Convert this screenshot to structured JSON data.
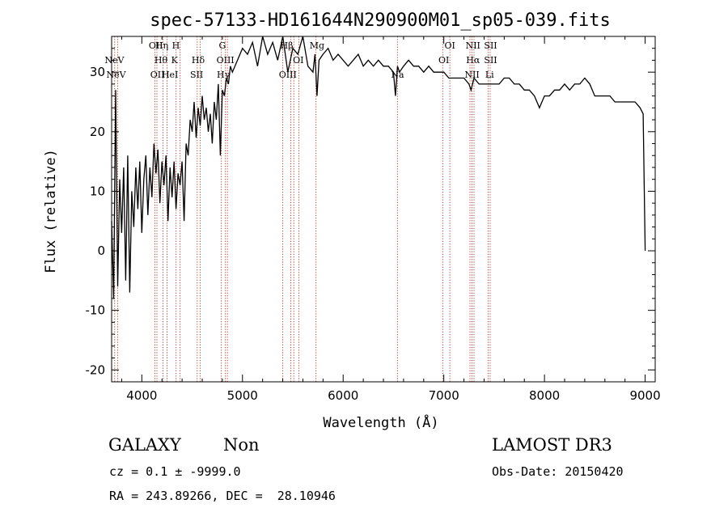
{
  "chart_data": {
    "type": "line",
    "title": "spec-57133-HD161644N290900M01_sp05-039.fits",
    "xlabel": "Wavelength (Å)",
    "ylabel": "Flux (relative)",
    "xlim": [
      3700,
      9100
    ],
    "ylim": [
      -22,
      36
    ],
    "xticks": [
      4000,
      5000,
      6000,
      7000,
      8000,
      9000
    ],
    "yticks": [
      -20,
      -10,
      0,
      10,
      20,
      30
    ],
    "grid": false,
    "series": [
      {
        "x": [
          3700,
          3720,
          3740,
          3760,
          3780,
          3800,
          3820,
          3840,
          3860,
          3880,
          3900,
          3920,
          3940,
          3960,
          3980,
          4000,
          4020,
          4040,
          4060,
          4080,
          4100,
          4120,
          4140,
          4160,
          4180,
          4200,
          4220,
          4240,
          4260,
          4280,
          4300,
          4320,
          4340,
          4360,
          4380,
          4400,
          4420,
          4440,
          4460,
          4480,
          4500,
          4520,
          4540,
          4560,
          4580,
          4600,
          4620,
          4640,
          4660,
          4680,
          4700,
          4720,
          4740,
          4760,
          4780,
          4800,
          4820,
          4840,
          4860,
          4880,
          4900,
          4950,
          5000,
          5050,
          5100,
          5150,
          5200,
          5250,
          5300,
          5350,
          5400,
          5450,
          5500,
          5550,
          5600,
          5650,
          5700,
          5720,
          5740,
          5760,
          5800,
          5850,
          5900,
          5950,
          6000,
          6050,
          6100,
          6150,
          6200,
          6250,
          6300,
          6350,
          6400,
          6450,
          6500,
          6520,
          6540,
          6560,
          6600,
          6650,
          6700,
          6750,
          6800,
          6850,
          6900,
          6950,
          7000,
          7050,
          7100,
          7150,
          7200,
          7250,
          7270,
          7300,
          7350,
          7400,
          7450,
          7500,
          7550,
          7600,
          7650,
          7700,
          7750,
          7800,
          7850,
          7900,
          7950,
          8000,
          8050,
          8100,
          8150,
          8200,
          8250,
          8300,
          8350,
          8400,
          8450,
          8500,
          8550,
          8600,
          8650,
          8700,
          8750,
          8800,
          8850,
          8900,
          8950,
          8980,
          9000
        ],
        "values": [
          5,
          -8,
          27,
          -6,
          12,
          3,
          14,
          -5,
          16,
          -7,
          10,
          4,
          14,
          7,
          15,
          3,
          12,
          16,
          6,
          14,
          9,
          18,
          13,
          17,
          8,
          15,
          11,
          16,
          5,
          14,
          9,
          15,
          7,
          13,
          11,
          15,
          5,
          18,
          16,
          22,
          20,
          25,
          19,
          24,
          21,
          26,
          22,
          24,
          20,
          23,
          18,
          25,
          22,
          28,
          16,
          27,
          26,
          29,
          28,
          31,
          30,
          32,
          34,
          33,
          35,
          31,
          36,
          33,
          35,
          32,
          37,
          30,
          34,
          33,
          36,
          31,
          30,
          33,
          26,
          32,
          33,
          34,
          32,
          33,
          32,
          31,
          32,
          33,
          31,
          32,
          31,
          32,
          31,
          31,
          30,
          26,
          31,
          30,
          31,
          32,
          31,
          31,
          30,
          31,
          30,
          30,
          30,
          29,
          29,
          29,
          29,
          28,
          27,
          29,
          28,
          28,
          28,
          28,
          28,
          29,
          29,
          28,
          28,
          27,
          27,
          26,
          24,
          26,
          26,
          27,
          27,
          28,
          27,
          28,
          28,
          29,
          28,
          26,
          26,
          26,
          26,
          25,
          25,
          25,
          25,
          25,
          24,
          23,
          0
        ]
      }
    ],
    "spectral_lines": [
      {
        "label": "NeV",
        "x": 3727,
        "row": 2
      },
      {
        "label": "NeV",
        "x": 3745,
        "row": 3
      },
      {
        "label": "OII",
        "x": 4140,
        "row": 1
      },
      {
        "label": "Hη",
        "x": 4198,
        "row": 1
      },
      {
        "label": "H",
        "x": 4338,
        "row": 1
      },
      {
        "label": "Hθ",
        "x": 4190,
        "row": 2
      },
      {
        "label": "K",
        "x": 4325,
        "row": 2
      },
      {
        "label": "Hδ",
        "x": 4560,
        "row": 2
      },
      {
        "label": "OII",
        "x": 4155,
        "row": 3
      },
      {
        "label": "HeI",
        "x": 4280,
        "row": 3
      },
      {
        "label": "SII",
        "x": 4545,
        "row": 3
      },
      {
        "label": "G",
        "x": 4800,
        "row": 1
      },
      {
        "label": "OIII",
        "x": 4830,
        "row": 2
      },
      {
        "label": "Hγ",
        "x": 4810,
        "row": 3
      },
      {
        "label": "Hβ",
        "x": 5440,
        "row": 1
      },
      {
        "label": "OI",
        "x": 5555,
        "row": 2
      },
      {
        "label": "OIII",
        "x": 5450,
        "row": 3
      },
      {
        "label": "Mg",
        "x": 5740,
        "row": 1
      },
      {
        "label": "Na",
        "x": 6540,
        "row": 3
      },
      {
        "label": "OI",
        "x": 7060,
        "row": 1
      },
      {
        "label": "OI",
        "x": 7000,
        "row": 2
      },
      {
        "label": "NII",
        "x": 7290,
        "row": 1
      },
      {
        "label": "SII",
        "x": 7465,
        "row": 1
      },
      {
        "label": "Hα",
        "x": 7290,
        "row": 2
      },
      {
        "label": "SII",
        "x": 7465,
        "row": 2
      },
      {
        "label": "NII",
        "x": 7280,
        "row": 3
      },
      {
        "label": "Li",
        "x": 7455,
        "row": 3
      }
    ],
    "line_markers": [
      3730,
      3760,
      4130,
      4150,
      4210,
      4250,
      4340,
      4380,
      4550,
      4580,
      4790,
      4830,
      4850,
      5400,
      5480,
      5510,
      5560,
      5730,
      6540,
      6990,
      7060,
      7260,
      7280,
      7300,
      7440,
      7460
    ]
  },
  "info": {
    "class_label": "GALAXY",
    "subclass_label": "Non",
    "cz_line": "cz = 0.1 ± -9999.0",
    "coords_line": "RA = 243.89266, DEC =  28.10946",
    "survey": "LAMOST DR3",
    "obs_date": "Obs-Date: 20150420"
  }
}
